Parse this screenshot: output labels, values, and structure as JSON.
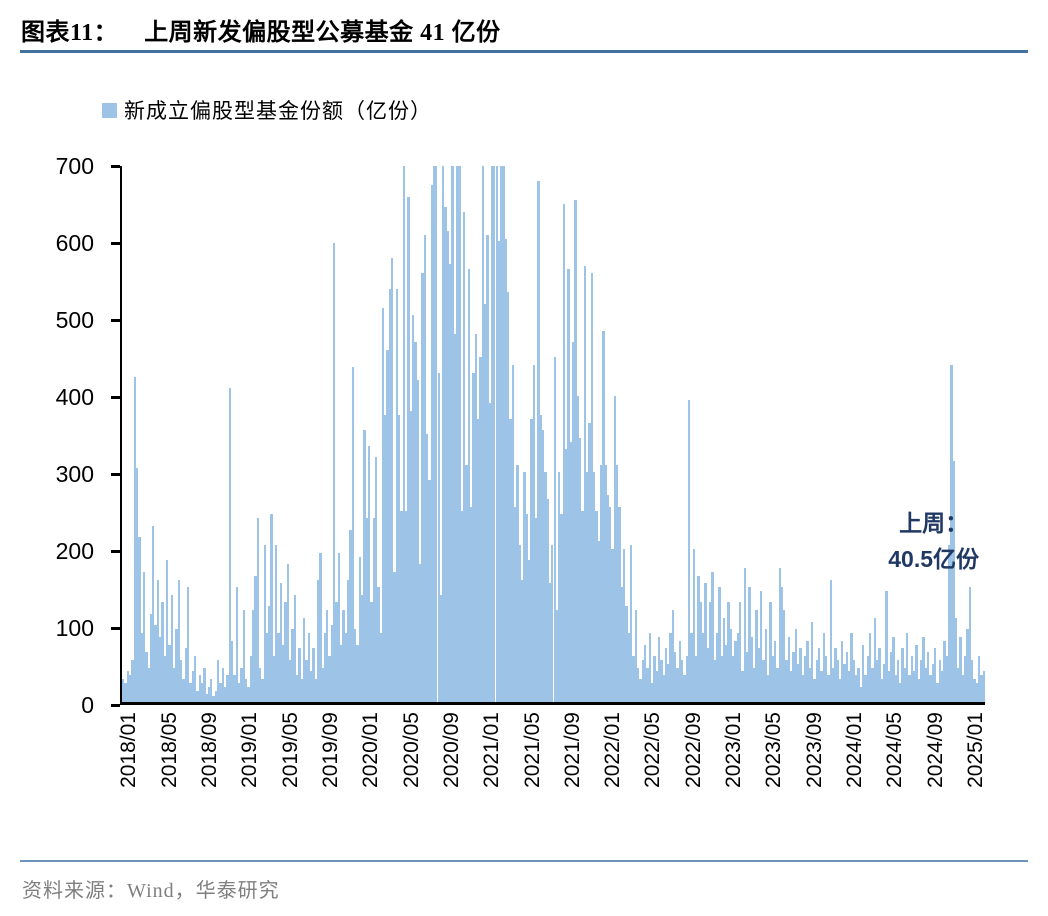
{
  "title": {
    "prefix": "图表11：",
    "text": "上周新发偏股型公募基金 41 亿份"
  },
  "legend": {
    "label": "新成立偏股型基金份额（亿份）",
    "swatch_color": "#9DC3E6"
  },
  "annotation": {
    "line1": "上周：",
    "line2": "40.5亿份",
    "color": "#1F3864"
  },
  "source": {
    "text": "资料来源：Wind，华泰研究"
  },
  "colors": {
    "bar": "#9DC3E6",
    "axis": "#000000",
    "title_rule": "#41719C",
    "source_rule": "#6B93BC",
    "annotation": "#1F3864",
    "source_text": "#7F7F7F"
  },
  "chart_data": {
    "type": "bar",
    "title": "新成立偏股型基金份额（亿份）",
    "unit": "亿份",
    "frequency": "weekly",
    "x_start": "2017/12",
    "x_end": "2025/01",
    "ylim": [
      0,
      700
    ],
    "y_ticks": [
      0,
      100,
      200,
      300,
      400,
      500,
      600,
      700
    ],
    "grid": false,
    "legend_position": "top-left",
    "x_tick_labels": [
      "2018/01",
      "2018/05",
      "2018/09",
      "2019/01",
      "2019/05",
      "2019/09",
      "2020/01",
      "2020/05",
      "2020/09",
      "2021/01",
      "2021/05",
      "2021/09",
      "2022/01",
      "2022/05",
      "2022/09",
      "2023/01",
      "2023/05",
      "2023/09",
      "2024/01",
      "2024/05",
      "2024/09",
      "2025/01"
    ],
    "x_tick_month_step": 4,
    "weeks_before_first_tick": 4,
    "last_week_value": 40.5,
    "note": "Weekly values estimated from pixels; bars clipped at y-max 700.",
    "values": [
      30,
      25,
      40,
      35,
      55,
      425,
      305,
      215,
      90,
      170,
      65,
      45,
      115,
      230,
      100,
      160,
      85,
      130,
      60,
      185,
      75,
      140,
      45,
      95,
      160,
      55,
      30,
      70,
      150,
      25,
      40,
      60,
      15,
      35,
      25,
      45,
      10,
      20,
      30,
      8,
      15,
      55,
      25,
      45,
      20,
      35,
      410,
      80,
      35,
      150,
      25,
      45,
      120,
      30,
      20,
      60,
      120,
      165,
      240,
      45,
      30,
      205,
      90,
      125,
      245,
      60,
      205,
      90,
      155,
      75,
      130,
      180,
      55,
      95,
      140,
      35,
      70,
      30,
      110,
      55,
      90,
      40,
      70,
      30,
      160,
      195,
      45,
      90,
      120,
      60,
      100,
      600,
      130,
      195,
      75,
      120,
      90,
      160,
      225,
      437,
      95,
      75,
      190,
      140,
      355,
      240,
      335,
      130,
      240,
      320,
      150,
      90,
      515,
      375,
      460,
      540,
      580,
      170,
      540,
      375,
      250,
      700,
      250,
      660,
      380,
      505,
      470,
      420,
      180,
      560,
      610,
      350,
      290,
      675,
      700,
      700,
      430,
      140,
      700,
      647,
      615,
      572,
      700,
      480,
      700,
      700,
      250,
      640,
      310,
      565,
      255,
      430,
      480,
      370,
      450,
      700,
      520,
      610,
      390,
      700,
      700,
      700,
      602,
      700,
      700,
      605,
      535,
      370,
      440,
      255,
      310,
      205,
      160,
      300,
      245,
      185,
      370,
      440,
      240,
      680,
      375,
      355,
      300,
      265,
      155,
      205,
      450,
      120,
      300,
      245,
      650,
      330,
      565,
      340,
      470,
      655,
      400,
      345,
      250,
      570,
      300,
      365,
      560,
      300,
      250,
      210,
      310,
      485,
      310,
      270,
      255,
      200,
      400,
      310,
      255,
      150,
      200,
      125,
      90,
      205,
      60,
      120,
      45,
      30,
      55,
      75,
      45,
      90,
      25,
      60,
      40,
      85,
      55,
      35,
      70,
      50,
      90,
      120,
      65,
      45,
      80,
      55,
      35,
      60,
      395,
      90,
      200,
      60,
      165,
      130,
      90,
      155,
      70,
      130,
      170,
      55,
      90,
      150,
      60,
      110,
      75,
      130,
      95,
      60,
      80,
      90,
      130,
      40,
      175,
      65,
      150,
      85,
      45,
      120,
      70,
      145,
      55,
      95,
      35,
      130,
      60,
      80,
      45,
      175,
      150,
      120,
      55,
      85,
      40,
      65,
      95,
      50,
      70,
      35,
      60,
      80,
      45,
      105,
      30,
      55,
      70,
      40,
      90,
      60,
      35,
      160,
      45,
      70,
      55,
      30,
      80,
      50,
      65,
      40,
      90,
      55,
      35,
      45,
      20,
      75,
      35,
      60,
      90,
      45,
      110,
      55,
      70,
      30,
      50,
      145,
      40,
      65,
      85,
      35,
      55,
      25,
      70,
      45,
      90,
      35,
      60,
      40,
      75,
      30,
      55,
      85,
      45,
      65,
      35,
      50,
      70,
      25,
      55,
      40,
      80,
      60,
      205,
      440,
      315,
      110,
      45,
      85,
      35,
      60,
      95,
      150,
      55,
      30,
      25,
      60,
      35,
      40.5
    ]
  }
}
